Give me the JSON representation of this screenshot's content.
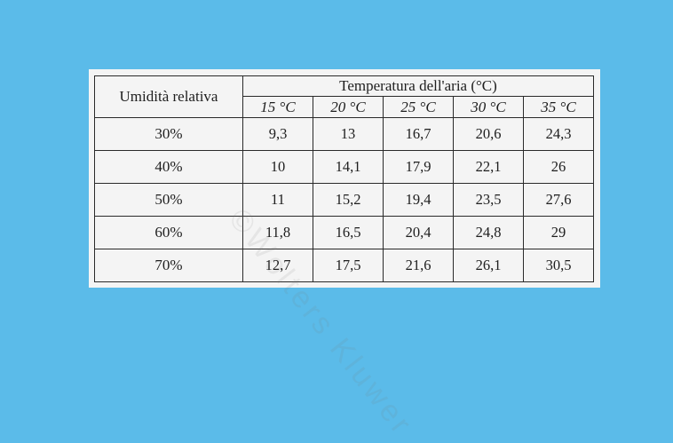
{
  "table": {
    "row_header": "Umidità relativa",
    "group_header": "Temperatura dell'aria (°C)",
    "columns": [
      "15 °C",
      "20 °C",
      "25 °C",
      "30 °C",
      "35 °C"
    ],
    "rows": [
      {
        "label": "30%",
        "values": [
          "9,3",
          "13",
          "16,7",
          "20,6",
          "24,3"
        ]
      },
      {
        "label": "40%",
        "values": [
          "10",
          "14,1",
          "17,9",
          "22,1",
          "26"
        ]
      },
      {
        "label": "50%",
        "values": [
          "11",
          "15,2",
          "19,4",
          "23,5",
          "27,6"
        ]
      },
      {
        "label": "60%",
        "values": [
          "11,8",
          "16,5",
          "20,4",
          "24,8",
          "29"
        ]
      },
      {
        "label": "70%",
        "values": [
          "12,7",
          "17,5",
          "21,6",
          "26,1",
          "30,5"
        ]
      }
    ]
  },
  "watermark": "©Wolters Kluwer",
  "colors": {
    "background": "#5bbbe9",
    "paper": "#f4f4f4",
    "ink": "#1e1e1e"
  }
}
